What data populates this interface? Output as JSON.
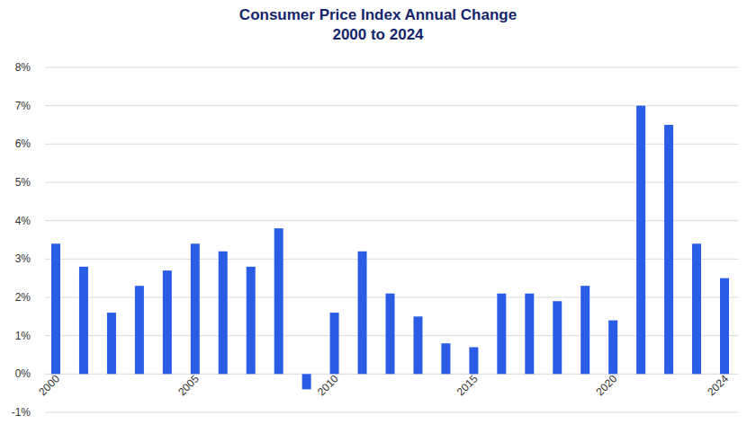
{
  "chart_data": {
    "type": "bar",
    "title": "Consumer Price Index Annual Change",
    "subtitle": "2000 to 2024",
    "categories": [
      "2000",
      null,
      null,
      null,
      null,
      "2005",
      null,
      null,
      null,
      null,
      "2010",
      null,
      null,
      null,
      null,
      "2015",
      null,
      null,
      null,
      null,
      "2020",
      null,
      null,
      null,
      "2024"
    ],
    "values": [
      3.4,
      2.8,
      1.6,
      2.3,
      2.7,
      3.4,
      3.2,
      2.8,
      3.8,
      -0.4,
      1.6,
      3.2,
      2.1,
      1.5,
      0.8,
      0.7,
      2.1,
      2.1,
      1.9,
      2.3,
      1.4,
      7.0,
      6.5,
      3.4,
      2.5
    ],
    "color": "#2b5ce6",
    "ylim": [
      -1,
      8
    ],
    "yticks": [
      {
        "value": -1,
        "label": "-1%"
      },
      {
        "value": 0,
        "label": "0%"
      },
      {
        "value": 1,
        "label": "1%"
      },
      {
        "value": 2,
        "label": "2%"
      },
      {
        "value": 3,
        "label": "3%"
      },
      {
        "value": 4,
        "label": "4%"
      },
      {
        "value": 5,
        "label": "5%"
      },
      {
        "value": 6,
        "label": "6%"
      },
      {
        "value": 7,
        "label": "7%"
      },
      {
        "value": 8,
        "label": "8%"
      }
    ],
    "grid": true
  }
}
